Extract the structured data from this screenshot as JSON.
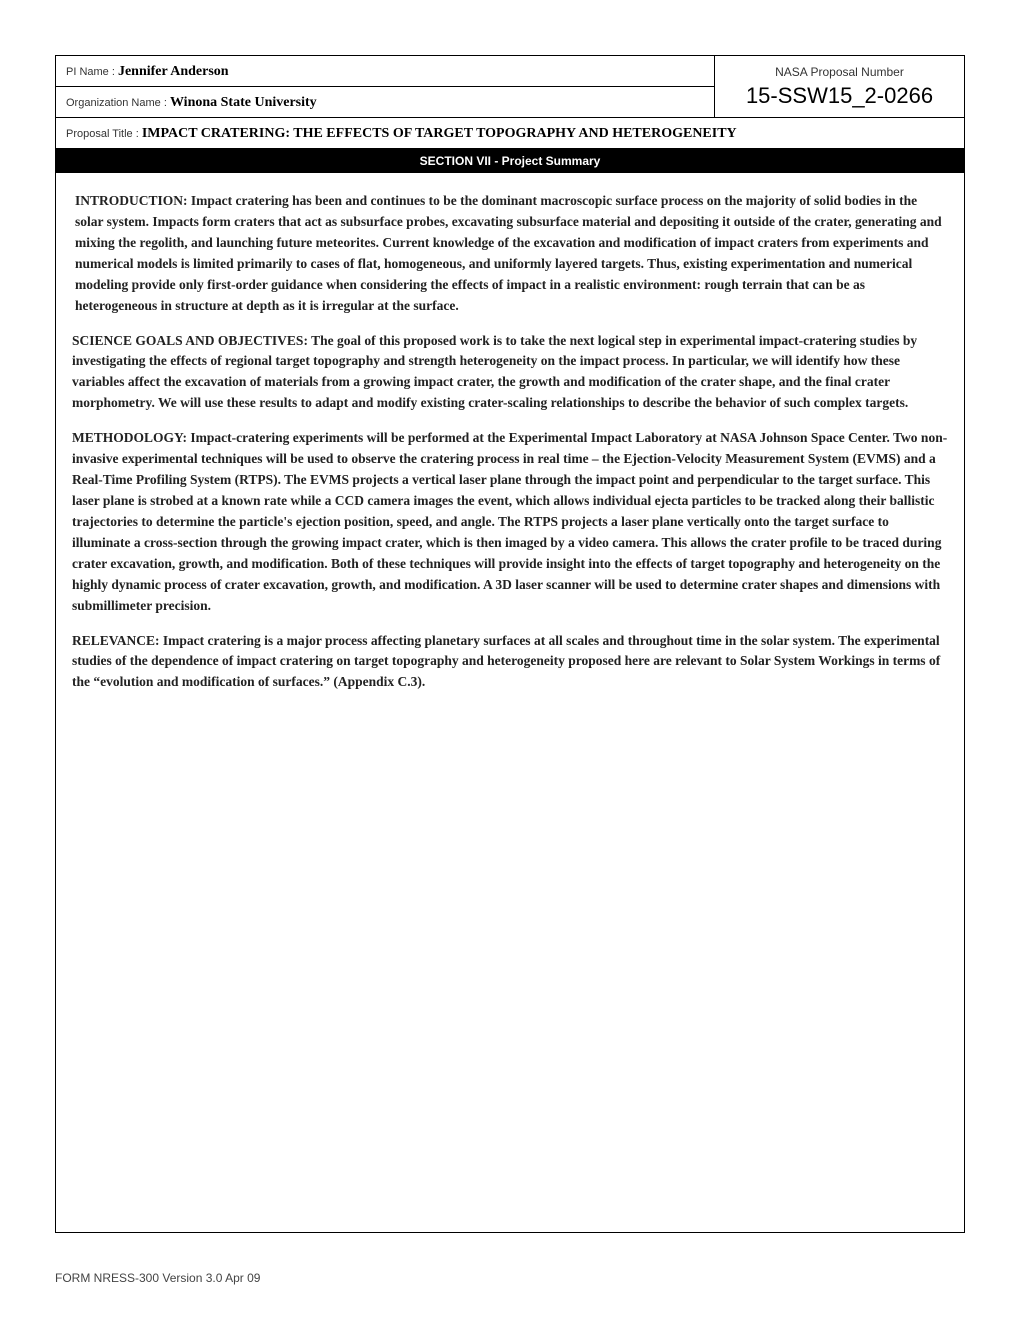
{
  "header": {
    "pi_label": "PI Name : ",
    "pi_name": "Jennifer  Anderson",
    "org_label": "Organization Name : ",
    "org_name": "Winona State University",
    "proposal_number_label": "NASA Proposal Number",
    "proposal_number": "15-SSW15_2-0266",
    "title_label": "Proposal Title : ",
    "title": "IMPACT CRATERING: THE EFFECTS OF TARGET TOPOGRAPHY AND HETEROGENEITY"
  },
  "section_banner": "SECTION VII - Project Summary",
  "paragraphs": {
    "p1": " INTRODUCTION: Impact cratering has been and continues to be the dominant macroscopic surface process on the majority of solid bodies in the solar system. Impacts form craters that act as subsurface probes, excavating subsurface material and depositing it outside of the crater, generating and mixing the regolith, and launching future meteorites. Current knowledge of the excavation and modification of impact craters from experiments and numerical models is limited primarily to cases of flat, homogeneous, and uniformly layered targets. Thus, existing experimentation and numerical modeling provide only first-order guidance when considering the effects of impact in a realistic environment: rough terrain that can be as heterogeneous in structure at depth as it is irregular at the surface.",
    "p2": "SCIENCE GOALS AND OBJECTIVES: The goal of this proposed work is to take the next logical step in experimental impact-cratering studies by investigating the effects of regional target topography and strength heterogeneity on the impact process. In particular, we will identify how these variables affect the excavation of materials from a growing impact crater, the growth and modification of the crater shape, and the final crater morphometry. We will use these results to adapt and modify existing crater-scaling relationships to describe the behavior of such complex targets.",
    "p3": "METHODOLOGY: Impact-cratering experiments will be performed at the Experimental Impact Laboratory at NASA Johnson Space Center. Two non-invasive experimental techniques will be used to observe the cratering process in real time – the Ejection-Velocity Measurement System (EVMS) and a Real-Time Profiling System (RTPS). The EVMS projects a vertical laser plane through the impact point and perpendicular to the target surface. This laser plane is strobed at a known rate while a CCD camera images the event, which allows individual ejecta particles to be tracked along their ballistic trajectories to determine the particle's ejection position, speed, and angle. The RTPS projects a laser plane vertically onto the target surface to illuminate a cross-section through the growing impact crater, which is then imaged by a video camera. This allows the crater profile to be traced during crater excavation, growth, and modification. Both of these techniques will provide insight into the effects of target topography and heterogeneity on the highly dynamic process of crater excavation, growth, and modification. A 3D laser scanner will be used to determine crater shapes and dimensions with submillimeter precision.",
    "p4": "RELEVANCE: Impact cratering is a major process affecting planetary surfaces at all scales and throughout time in the solar system. The experimental studies of the dependence of impact cratering on target topography and heterogeneity proposed here are relevant to Solar System Workings in terms of the “evolution and modification of surfaces.” (Appendix C.3)."
  },
  "footer": "FORM NRESS-300 Version 3.0 Apr 09"
}
